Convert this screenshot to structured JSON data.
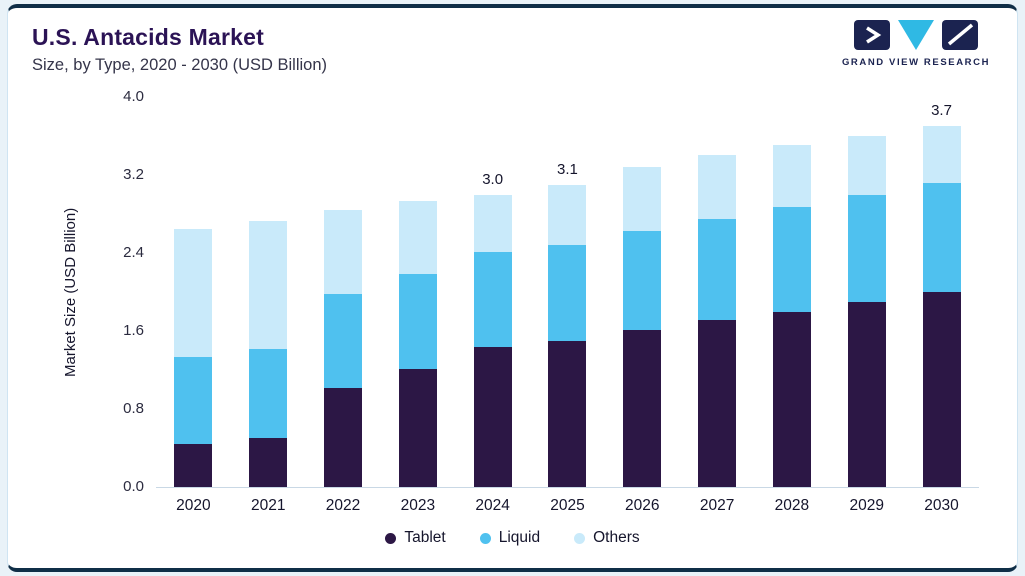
{
  "header": {
    "title": "U.S. Antacids Market",
    "subtitle": "Size, by Type, 2020 - 2030 (USD Billion)"
  },
  "logo": {
    "brand_text": "GRAND VIEW RESEARCH"
  },
  "colors": {
    "accent_border": "#0f2e47",
    "card_border": "#cfe4f2",
    "page_background": "#e9f2f8",
    "title_text": "#2b1355",
    "logo_navy": "#1b2350",
    "logo_teal": "#2fb9e4",
    "tablet": "#2c1745",
    "liquid": "#4fc1ef",
    "others": "#c9eafa"
  },
  "chart_data": {
    "type": "bar",
    "stacked": true,
    "title": "U.S. Antacids Market",
    "subtitle": "Size, by Type, 2020 - 2030 (USD Billion)",
    "xlabel": "",
    "ylabel": "Market Size (USD Billion)",
    "ylim": [
      0,
      4.0
    ],
    "yticks": [
      "4.0",
      "3.2",
      "2.4",
      "1.6",
      "0.8",
      "0.0"
    ],
    "grid": false,
    "legend_position": "bottom",
    "categories": [
      "2020",
      "2021",
      "2022",
      "2023",
      "2024",
      "2025",
      "2026",
      "2027",
      "2028",
      "2029",
      "2030"
    ],
    "series": [
      {
        "name": "Tablet",
        "color": "#2c1745",
        "values": [
          0.44,
          0.5,
          1.02,
          1.21,
          1.44,
          1.5,
          1.61,
          1.71,
          1.8,
          1.9,
          2.0
        ]
      },
      {
        "name": "Liquid",
        "color": "#4fc1ef",
        "values": [
          0.89,
          0.92,
          0.96,
          0.97,
          0.97,
          0.98,
          1.02,
          1.04,
          1.07,
          1.09,
          1.12
        ]
      },
      {
        "name": "Others",
        "color": "#c9eafa",
        "values": [
          1.32,
          1.31,
          0.86,
          0.75,
          0.59,
          0.62,
          0.65,
          0.66,
          0.64,
          0.61,
          0.58
        ]
      }
    ],
    "totals": [
      2.65,
      2.73,
      2.84,
      2.93,
      3.0,
      3.1,
      3.28,
      3.41,
      3.51,
      3.6,
      3.7
    ],
    "annotations": {
      "2024": "3.0",
      "2025": "3.1",
      "2030": "3.7"
    }
  }
}
